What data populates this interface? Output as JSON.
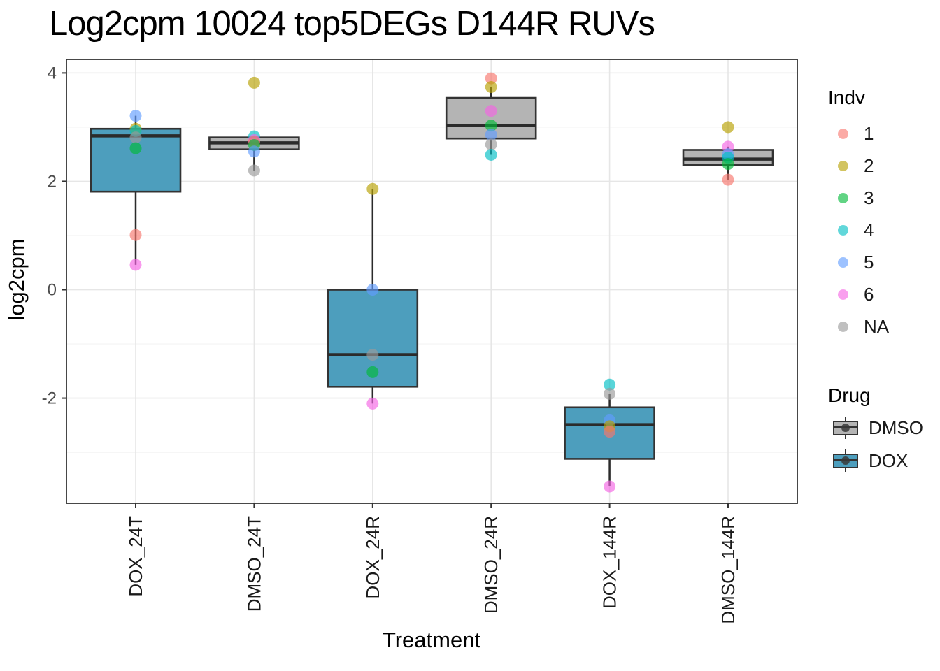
{
  "chart_data": {
    "type": "boxplot",
    "title": "Log2cpm 10024 top5DEGs D144R RUVs",
    "xlabel": "Treatment",
    "ylabel": "log2cpm",
    "ylim": [
      -3.94,
      4.25
    ],
    "yticks": [
      {
        "value": 4,
        "label": "4"
      },
      {
        "value": 2,
        "label": "2"
      },
      {
        "value": 0,
        "label": "0"
      },
      {
        "value": -2,
        "label": "-2"
      }
    ],
    "yminor": [
      3,
      1,
      -1,
      -3
    ],
    "grid": true,
    "legend_position": "right",
    "categories": [
      "DOX_24T",
      "DMSO_24T",
      "DOX_24R",
      "DMSO_24R",
      "DOX_144R",
      "DMSO_144R"
    ],
    "groups": [
      {
        "category": "DOX_24T",
        "drug": "DOX",
        "q1": 1.81,
        "median": 2.84,
        "q3": 2.97,
        "whisker_low": 0.46,
        "whisker_high": 3.21,
        "points": [
          {
            "indv": "5",
            "value": 3.21
          },
          {
            "indv": "2",
            "value": 2.97
          },
          {
            "indv": "4",
            "value": 2.93
          },
          {
            "indv": "NA",
            "value": 2.81
          },
          {
            "indv": "3",
            "value": 2.61
          },
          {
            "indv": "1",
            "value": 1.01
          },
          {
            "indv": "6",
            "value": 0.46
          }
        ]
      },
      {
        "category": "DMSO_24T",
        "drug": "DMSO",
        "q1": 2.59,
        "median": 2.71,
        "q3": 2.81,
        "whisker_low": 2.2,
        "whisker_high": 2.83,
        "points": [
          {
            "indv": "2",
            "value": 3.82
          },
          {
            "indv": "4",
            "value": 2.83
          },
          {
            "indv": "6",
            "value": 2.76
          },
          {
            "indv": "1",
            "value": 2.73
          },
          {
            "indv": "3",
            "value": 2.67
          },
          {
            "indv": "5",
            "value": 2.55
          },
          {
            "indv": "NA",
            "value": 2.2
          }
        ]
      },
      {
        "category": "DOX_24R",
        "drug": "DOX",
        "q1": -1.79,
        "median": -1.2,
        "q3": 0.0,
        "whisker_low": -2.1,
        "whisker_high": 1.86,
        "points": [
          {
            "indv": "2",
            "value": 1.86
          },
          {
            "indv": "5",
            "value": 0.0
          },
          {
            "indv": "NA",
            "value": -1.2
          },
          {
            "indv": "3",
            "value": -1.52
          },
          {
            "indv": "6",
            "value": -2.1
          }
        ]
      },
      {
        "category": "DMSO_24R",
        "drug": "DMSO",
        "q1": 2.79,
        "median": 3.03,
        "q3": 3.54,
        "whisker_low": 2.49,
        "whisker_high": 3.74,
        "points": [
          {
            "indv": "1",
            "value": 3.9
          },
          {
            "indv": "2",
            "value": 3.74
          },
          {
            "indv": "6",
            "value": 3.3
          },
          {
            "indv": "3",
            "value": 3.03
          },
          {
            "indv": "5",
            "value": 2.86
          },
          {
            "indv": "NA",
            "value": 2.68
          },
          {
            "indv": "4",
            "value": 2.49
          }
        ]
      },
      {
        "category": "DOX_144R",
        "drug": "DOX",
        "q1": -3.12,
        "median": -2.49,
        "q3": -2.17,
        "whisker_low": -3.63,
        "whisker_high": -1.92,
        "points": [
          {
            "indv": "4",
            "value": -1.75
          },
          {
            "indv": "NA",
            "value": -1.92
          },
          {
            "indv": "5",
            "value": -2.41
          },
          {
            "indv": "2",
            "value": -2.52
          },
          {
            "indv": "1",
            "value": -2.62
          },
          {
            "indv": "6",
            "value": -3.63
          }
        ]
      },
      {
        "category": "DMSO_144R",
        "drug": "DMSO",
        "q1": 2.3,
        "median": 2.41,
        "q3": 2.58,
        "whisker_low": 2.03,
        "whisker_high": 2.64,
        "points": [
          {
            "indv": "2",
            "value": 3.0
          },
          {
            "indv": "6",
            "value": 2.64
          },
          {
            "indv": "5",
            "value": 2.5
          },
          {
            "indv": "4",
            "value": 2.44
          },
          {
            "indv": "3",
            "value": 2.32
          },
          {
            "indv": "1",
            "value": 2.03
          }
        ]
      }
    ],
    "legend": {
      "indv": {
        "title": "Indv",
        "items": [
          {
            "label": "1",
            "color": "#F8766D"
          },
          {
            "label": "2",
            "color": "#B79F00"
          },
          {
            "label": "3",
            "color": "#00BA38"
          },
          {
            "label": "4",
            "color": "#00BFC4"
          },
          {
            "label": "5",
            "color": "#619CFF"
          },
          {
            "label": "6",
            "color": "#F564E3"
          },
          {
            "label": "NA",
            "color": "#999999"
          }
        ]
      },
      "drug": {
        "title": "Drug",
        "items": [
          {
            "label": "DMSO",
            "color": "#B4B4B4"
          },
          {
            "label": "DOX",
            "color": "#4D9EBD"
          }
        ]
      }
    },
    "colors": {
      "panel_background": "#FFFFFF",
      "panel_border": "#333333",
      "grid_major": "#E6E6E6",
      "grid_minor": "#F3F3F3",
      "box_border": "#333333",
      "median_line": "#2B2B2B",
      "whisker": "#2B2B2B",
      "y_tick_text": "#4D4D4D",
      "x_tick_text": "#1A1A1A",
      "tick_mark": "#333333",
      "point_opacity": 0.65
    }
  }
}
